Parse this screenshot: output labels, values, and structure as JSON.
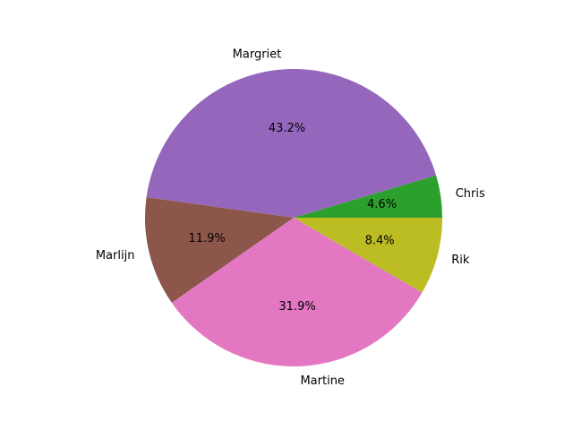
{
  "chart_data": {
    "type": "pie",
    "title": "",
    "start_angle_deg": 0,
    "direction": "counterclockwise",
    "slices": [
      {
        "label": "Chris",
        "value": 4.6,
        "pct_label": "4.6%",
        "color": "#2ca02c"
      },
      {
        "label": "Margriet",
        "value": 43.2,
        "pct_label": "43.2%",
        "color": "#9467bd"
      },
      {
        "label": "Marlijn",
        "value": 11.9,
        "pct_label": "11.9%",
        "color": "#8c564b"
      },
      {
        "label": "Martine",
        "value": 31.9,
        "pct_label": "31.9%",
        "color": "#e377c2"
      },
      {
        "label": "Rik",
        "value": 8.4,
        "pct_label": "8.4%",
        "color": "#bcbd22"
      }
    ]
  }
}
